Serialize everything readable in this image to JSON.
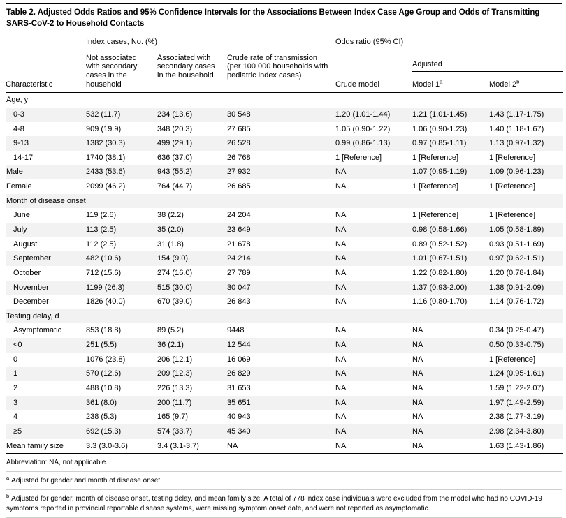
{
  "colors": {
    "bg": "#ffffff",
    "text": "#000000",
    "rule": "#000000",
    "hairline": "#cfcfcf",
    "zebra": "#f2f2f2"
  },
  "title": "Table 2. Adjusted Odds Ratios and 95% Confidence Intervals for the Associations Between Index Case Age Group and Odds of Transmitting SARS-CoV-2 to Household Contacts",
  "header": {
    "characteristic": "Characteristic",
    "index_cases_group": "Index cases, No. (%)",
    "not_associated": "Not associated with secondary cases in the household",
    "associated": "Associated with secondary cases in the household",
    "crude_rate": "Crude rate of transmission (per 100 000 households with pediatric index cases)",
    "odds_ratio_group": "Odds ratio (95% CI)",
    "crude_model": "Crude model",
    "adjusted": "Adjusted",
    "model1_label": "Model 1",
    "model1_sup": "a",
    "model2_label": "Model 2",
    "model2_sup": "b"
  },
  "rows": [
    {
      "section": true,
      "indent": false,
      "label": "Age, y"
    },
    {
      "section": false,
      "indent": true,
      "label": "0-3",
      "cells": [
        "532 (11.7)",
        "234 (13.6)",
        "30 548",
        "1.20 (1.01-1.44)",
        "1.21 (1.01-1.45)",
        "1.43 (1.17-1.75)"
      ]
    },
    {
      "section": false,
      "indent": true,
      "label": "4-8",
      "cells": [
        "909 (19.9)",
        "348 (20.3)",
        "27 685",
        "1.05 (0.90-1.22)",
        "1.06 (0.90-1.23)",
        "1.40 (1.18-1.67)"
      ]
    },
    {
      "section": false,
      "indent": true,
      "label": "9-13",
      "cells": [
        "1382 (30.3)",
        "499 (29.1)",
        "26 528",
        "0.99 (0.86-1.13)",
        "0.97 (0.85-1.11)",
        "1.13 (0.97-1.32)"
      ]
    },
    {
      "section": false,
      "indent": true,
      "label": "14-17",
      "cells": [
        "1740 (38.1)",
        "636 (37.0)",
        "26 768",
        "1 [Reference]",
        "1 [Reference]",
        "1 [Reference]"
      ]
    },
    {
      "section": false,
      "indent": false,
      "label": "Male",
      "cells": [
        "2433 (53.6)",
        "943 (55.2)",
        "27 932",
        "NA",
        "1.07 (0.95-1.19)",
        "1.09 (0.96-1.23)"
      ]
    },
    {
      "section": false,
      "indent": false,
      "label": "Female",
      "cells": [
        "2099 (46.2)",
        "764 (44.7)",
        "26 685",
        "NA",
        "1 [Reference]",
        "1 [Reference]"
      ]
    },
    {
      "section": true,
      "indent": false,
      "label": "Month of disease onset"
    },
    {
      "section": false,
      "indent": true,
      "label": "June",
      "cells": [
        "119 (2.6)",
        "38 (2.2)",
        "24 204",
        "NA",
        "1 [Reference]",
        "1 [Reference]"
      ]
    },
    {
      "section": false,
      "indent": true,
      "label": "July",
      "cells": [
        "113 (2.5)",
        "35 (2.0)",
        "23 649",
        "NA",
        "0.98 (0.58-1.66)",
        "1.05 (0.58-1.89)"
      ]
    },
    {
      "section": false,
      "indent": true,
      "label": "August",
      "cells": [
        "112 (2.5)",
        "31 (1.8)",
        "21 678",
        "NA",
        "0.89 (0.52-1.52)",
        "0.93 (0.51-1.69)"
      ]
    },
    {
      "section": false,
      "indent": true,
      "label": "September",
      "cells": [
        "482 (10.6)",
        "154 (9.0)",
        "24 214",
        "NA",
        "1.01 (0.67-1.51)",
        "0.97 (0.62-1.51)"
      ]
    },
    {
      "section": false,
      "indent": true,
      "label": "October",
      "cells": [
        "712 (15.6)",
        "274 (16.0)",
        "27 789",
        "NA",
        "1.22 (0.82-1.80)",
        "1.20 (0.78-1.84)"
      ]
    },
    {
      "section": false,
      "indent": true,
      "label": "November",
      "cells": [
        "1199 (26.3)",
        "515 (30.0)",
        "30 047",
        "NA",
        "1.37 (0.93-2.00)",
        "1.38 (0.91-2.09)"
      ]
    },
    {
      "section": false,
      "indent": true,
      "label": "December",
      "cells": [
        "1826 (40.0)",
        "670 (39.0)",
        "26 843",
        "NA",
        "1.16 (0.80-1.70)",
        "1.14 (0.76-1.72)"
      ]
    },
    {
      "section": true,
      "indent": false,
      "label": "Testing delay, d"
    },
    {
      "section": false,
      "indent": true,
      "label": "Asymptomatic",
      "cells": [
        "853 (18.8)",
        "89 (5.2)",
        "9448",
        "NA",
        "NA",
        "0.34 (0.25-0.47)"
      ]
    },
    {
      "section": false,
      "indent": true,
      "label": "<0",
      "cells": [
        "251 (5.5)",
        "36 (2.1)",
        "12 544",
        "NA",
        "NA",
        "0.50 (0.33-0.75)"
      ]
    },
    {
      "section": false,
      "indent": true,
      "label": "0",
      "cells": [
        "1076 (23.8)",
        "206 (12.1)",
        "16 069",
        "NA",
        "NA",
        "1 [Reference]"
      ]
    },
    {
      "section": false,
      "indent": true,
      "label": "1",
      "cells": [
        "570 (12.6)",
        "209 (12.3)",
        "26 829",
        "NA",
        "NA",
        "1.24 (0.95-1.61)"
      ]
    },
    {
      "section": false,
      "indent": true,
      "label": "2",
      "cells": [
        "488 (10.8)",
        "226 (13.3)",
        "31 653",
        "NA",
        "NA",
        "1.59 (1.22-2.07)"
      ]
    },
    {
      "section": false,
      "indent": true,
      "label": "3",
      "cells": [
        "361 (8.0)",
        "200 (11.7)",
        "35 651",
        "NA",
        "NA",
        "1.97 (1.49-2.59)"
      ]
    },
    {
      "section": false,
      "indent": true,
      "label": "4",
      "cells": [
        "238 (5.3)",
        "165 (9.7)",
        "40 943",
        "NA",
        "NA",
        "2.38 (1.77-3.19)"
      ]
    },
    {
      "section": false,
      "indent": true,
      "label": "≥5",
      "cells": [
        "692 (15.3)",
        "574 (33.7)",
        "45 340",
        "NA",
        "NA",
        "2.98 (2.34-3.80)"
      ]
    },
    {
      "section": false,
      "indent": false,
      "label": "Mean family size",
      "cells": [
        "3.3 (3.0-3.6)",
        "3.4 (3.1-3.7)",
        "NA",
        "NA",
        "NA",
        "1.63 (1.43-1.86)"
      ]
    }
  ],
  "footnotes": {
    "abbreviation": "Abbreviation: NA, not applicable.",
    "a_sup": "a",
    "a_text": "Adjusted for gender and month of disease onset.",
    "b_sup": "b",
    "b_text": "Adjusted for gender, month of disease onset, testing delay, and mean family size. A total of 778 index case individuals were excluded from the model who had no COVID-19 symptoms reported in provincial reportable disease systems, were missing symptom onset date, and were not reported as asymptomatic."
  }
}
